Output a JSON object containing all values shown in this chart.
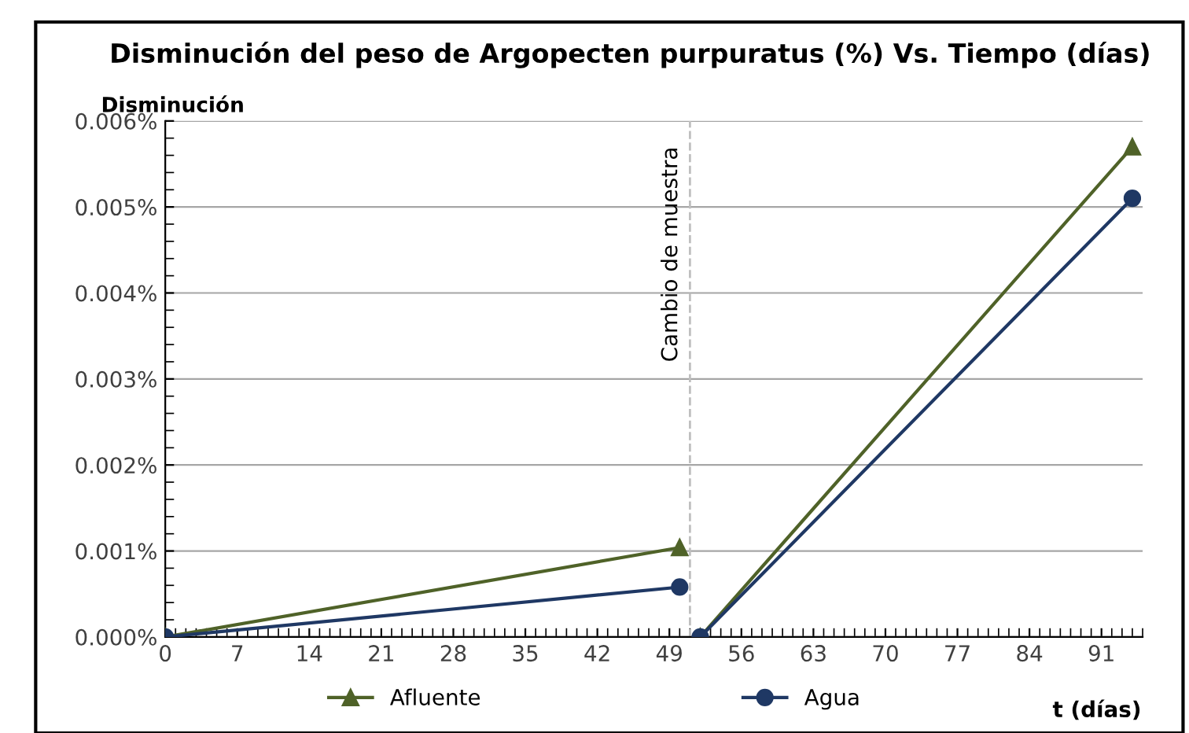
{
  "chart_data": {
    "type": "line",
    "title": "Disminución del peso de Argopecten purpuratus (%) Vs. Tiempo (días)",
    "ylabel": "Disminución",
    "xlabel": "t (días)",
    "series": [
      {
        "name": "Afluente",
        "color": "#4f6228",
        "marker": "triangle",
        "x": [
          0,
          50,
          51,
          52,
          94
        ],
        "values": [
          0,
          0.00104,
          null,
          0,
          0.0057
        ]
      },
      {
        "name": "Agua",
        "color": "#1f3864",
        "marker": "circle",
        "x": [
          0,
          50,
          51,
          52,
          94
        ],
        "values": [
          0,
          0.00058,
          null,
          0,
          0.0051
        ]
      }
    ],
    "xlim": [
      0,
      95
    ],
    "xticks": [
      0,
      7,
      14,
      21,
      28,
      35,
      42,
      49,
      56,
      63,
      70,
      77,
      84,
      91
    ],
    "ylim": [
      0,
      0.006
    ],
    "yticks": [
      {
        "value": 0,
        "label": "0.000%"
      },
      {
        "value": 0.001,
        "label": "0.001%"
      },
      {
        "value": 0.002,
        "label": "0.002%"
      },
      {
        "value": 0.003,
        "label": "0.003%"
      },
      {
        "value": 0.004,
        "label": "0.004%"
      },
      {
        "value": 0.005,
        "label": "0.005%"
      },
      {
        "value": 0.006,
        "label": "0.006%"
      }
    ],
    "ref_lines": [
      {
        "axis": "x",
        "value": 51,
        "label": "Cambio de muestra",
        "color": "#bfbfbf",
        "line_style": "dashed"
      }
    ],
    "grid": "y",
    "legend": "bottom",
    "line_style": "solid"
  }
}
